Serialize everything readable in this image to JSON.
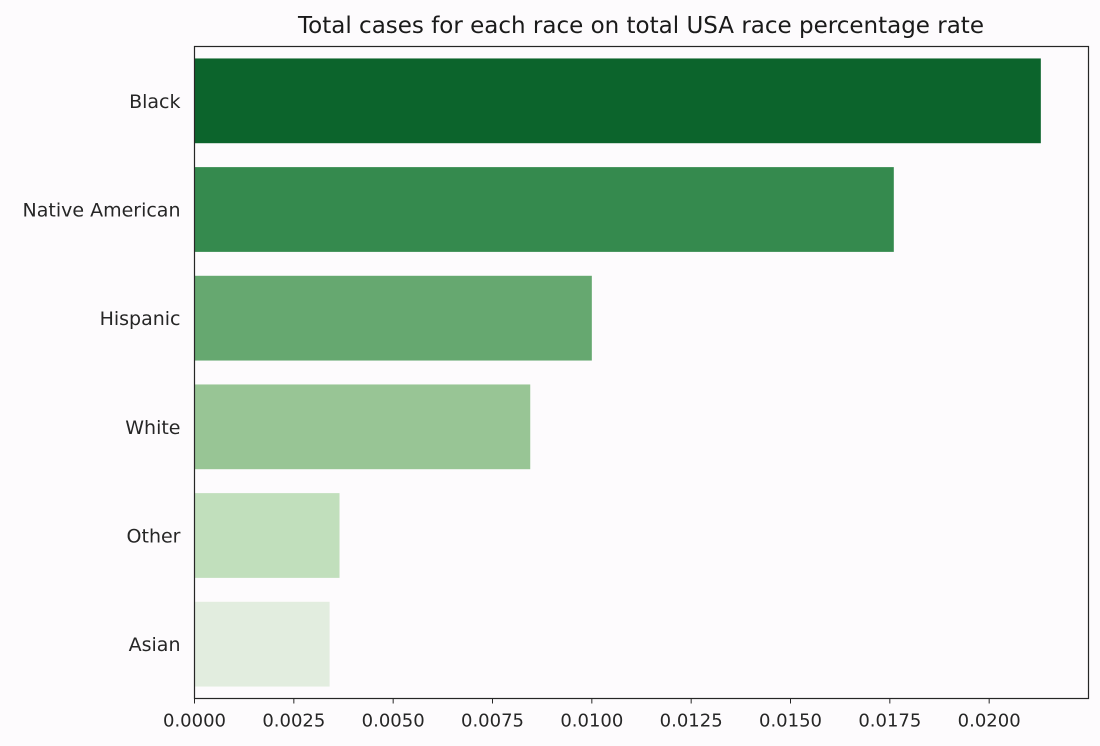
{
  "chart_data": {
    "type": "bar",
    "orientation": "horizontal",
    "title": "Total cases for each race on total USA race percentage rate",
    "xlabel": "",
    "ylabel": "",
    "categories": [
      "Black",
      "Native American",
      "Hispanic",
      "White",
      "Other",
      "Asian"
    ],
    "values": [
      0.0213,
      0.0176,
      0.01,
      0.00845,
      0.00365,
      0.0034
    ],
    "colors": [
      "#0c642c",
      "#358a4e",
      "#66a870",
      "#98c595",
      "#c1dfbc",
      "#e2eddf"
    ],
    "xlim": [
      -0.0,
      0.0225
    ],
    "xticks": [
      0.0,
      0.0025,
      0.005,
      0.0075,
      0.01,
      0.0125,
      0.015,
      0.0175,
      0.02
    ],
    "xtick_labels": [
      "0.0000",
      "0.0025",
      "0.0050",
      "0.0075",
      "0.0100",
      "0.0125",
      "0.0150",
      "0.0175",
      "0.0200"
    ],
    "grid": false,
    "legend": false
  }
}
